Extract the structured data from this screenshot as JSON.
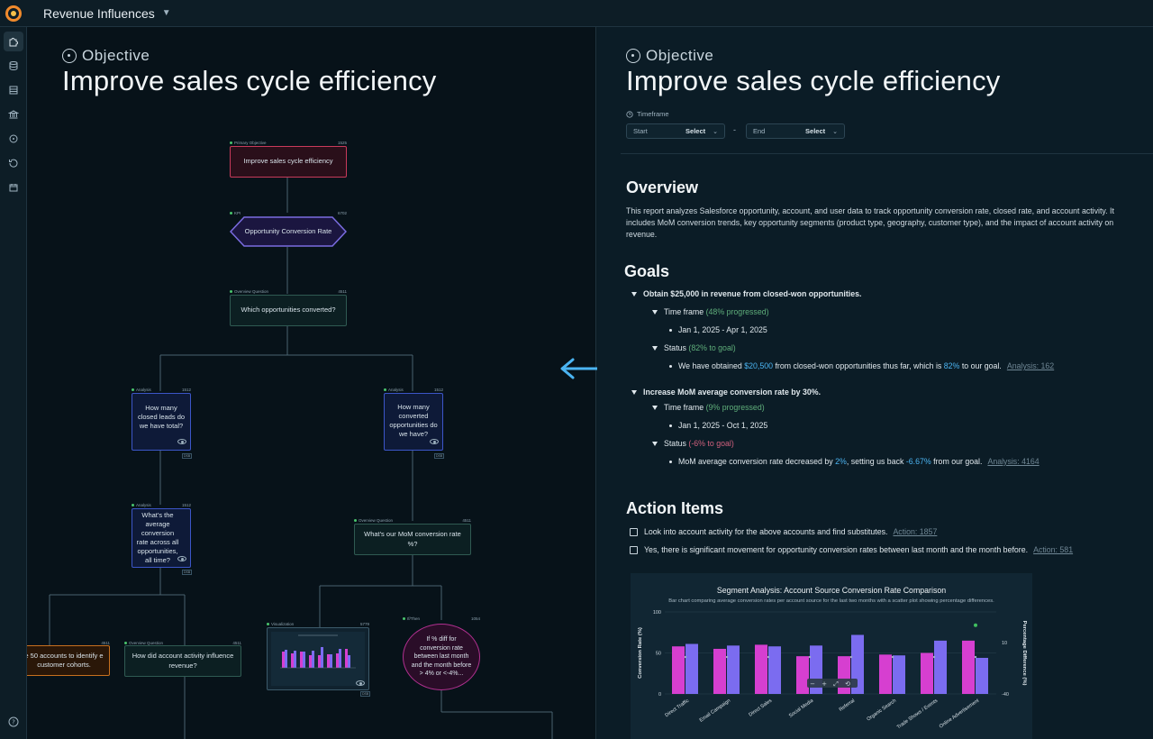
{
  "app": {
    "title": "Revenue Influences"
  },
  "sidebar": {
    "icons": [
      "puzzle-icon",
      "database-icon",
      "layers-icon",
      "bank-icon",
      "target-icon",
      "history-icon",
      "calendar-icon"
    ],
    "help": "help-icon"
  },
  "objective": {
    "label": "Objective",
    "title": "Improve sales cycle efficiency"
  },
  "flow": {
    "primary": {
      "cap": "Primary Objective",
      "id": "1525",
      "text": "Improve sales cycle efficiency"
    },
    "kpi": {
      "cap": "KPI",
      "id": "6702",
      "text": "Opportunity Conversion Rate"
    },
    "overview1": {
      "cap": "Overview Question",
      "id": "4511",
      "text": "Which opportunities converted?"
    },
    "analysis1": {
      "cap": "Analysis",
      "id": "1512",
      "text": "How many closed leads do we have total?"
    },
    "analysis2": {
      "cap": "Analysis",
      "id": "1512",
      "text": "How many converted opportunities do we have?"
    },
    "analysis3": {
      "cap": "Analysis",
      "id": "1512",
      "text": "What's the average conversion rate across all opportunities, all time?"
    },
    "overview2": {
      "cap": "Overview Question",
      "id": "4511",
      "text": "What's our MoM conversion rate %?"
    },
    "cohort": {
      "id": "4511",
      "text": "e 50 accounts to identify e customer cohorts."
    },
    "overview3": {
      "cap": "Overview Question",
      "id": "4511",
      "text": "How did account activity influence revenue?"
    },
    "viz": {
      "cap": "Visualization",
      "id": "5779"
    },
    "ifthen": {
      "cap": "If/Then",
      "id": "1054",
      "text": "If % diff for conversion rate between last month and the month before > 4% or <-4%..."
    }
  },
  "timeframe": {
    "label": "Timeframe",
    "start_label": "Start",
    "end_label": "End",
    "start_value": "Select",
    "end_value": "Select",
    "sep": "-"
  },
  "overview": {
    "heading": "Overview",
    "text": "This report analyzes Salesforce opportunity, account, and user data to track opportunity conversion rate, closed rate, and account activity. It includes MoM conversion trends, key opportunity segments (product type, geography, customer type), and the impact of account activity on revenue."
  },
  "goals": {
    "heading": "Goals",
    "g1": {
      "title": "Obtain $25,000 in revenue from closed-won opportunities.",
      "timeframe_label": "Time frame",
      "timeframe_progress": "(48% progressed)",
      "timeframe_dates": "Jan 1, 2025 - Apr 1, 2025",
      "status_label": "Status",
      "status_progress": "(82% to goal)",
      "detail_a": "We have obtained",
      "detail_amount": "$20,500",
      "detail_b": "from closed-won opportunities thus far, which is",
      "detail_pct": "82%",
      "detail_c": "to our goal.",
      "link": "Analysis: 162"
    },
    "g2": {
      "title": "Increase MoM average conversion rate by 30%.",
      "timeframe_label": "Time frame",
      "timeframe_progress": "(9% progressed)",
      "timeframe_dates": "Jan 1, 2025 - Oct 1, 2025",
      "status_label": "Status",
      "status_progress": "(-6% to goal)",
      "detail_a": "MoM average conversion rate decreased by",
      "detail_pct": "2%",
      "detail_b": ", setting us back",
      "detail_back": "-6.67%",
      "detail_c": "from our goal.",
      "link": "Analysis: 4164"
    }
  },
  "actions": {
    "heading": "Action Items",
    "items": [
      {
        "text": "Look into account activity for the above accounts and find substitutes.",
        "link": "Action: 1857"
      },
      {
        "text": "Yes, there is significant movement for opportunity conversion rates between last month and the month before.",
        "link": "Action: 581"
      }
    ]
  },
  "chart_data": {
    "type": "bar",
    "title": "Segment Analysis: Account Source Conversion Rate Comparison",
    "subtitle": "Bar chart comparing average conversion rates per account source for the last two months with a scatter plot showing percentage differences.",
    "ylabel": "Conversion Rate (%)",
    "y2label": "Percentage Difference (%)",
    "ylim": [
      0,
      100
    ],
    "y2lim": [
      -40,
      40
    ],
    "y_ticks": [
      "100",
      "50",
      "0"
    ],
    "y2_ticks": [
      "10",
      "-40"
    ],
    "categories": [
      "Direct Traffic",
      "Email Campaign",
      "Direct Sales",
      "Social Media",
      "Referral",
      "Organic Search",
      "Trade Shows / Events",
      "Online Advertisement"
    ],
    "series": [
      {
        "values": [
          58,
          55,
          60,
          46,
          46,
          48,
          50,
          65
        ],
        "color": "#d63fd0"
      },
      {
        "values": [
          61,
          59,
          58,
          59,
          72,
          47,
          65,
          44
        ],
        "color": "#7b6cf0"
      }
    ],
    "points": [
      {
        "category": "Online Advertisement",
        "value": 27,
        "color": "#3fbf5f"
      }
    ]
  },
  "colors": {
    "accent_blue": "#4bb4f2",
    "goal_green": "#5fae7a",
    "goal_red": "#d0607d"
  }
}
